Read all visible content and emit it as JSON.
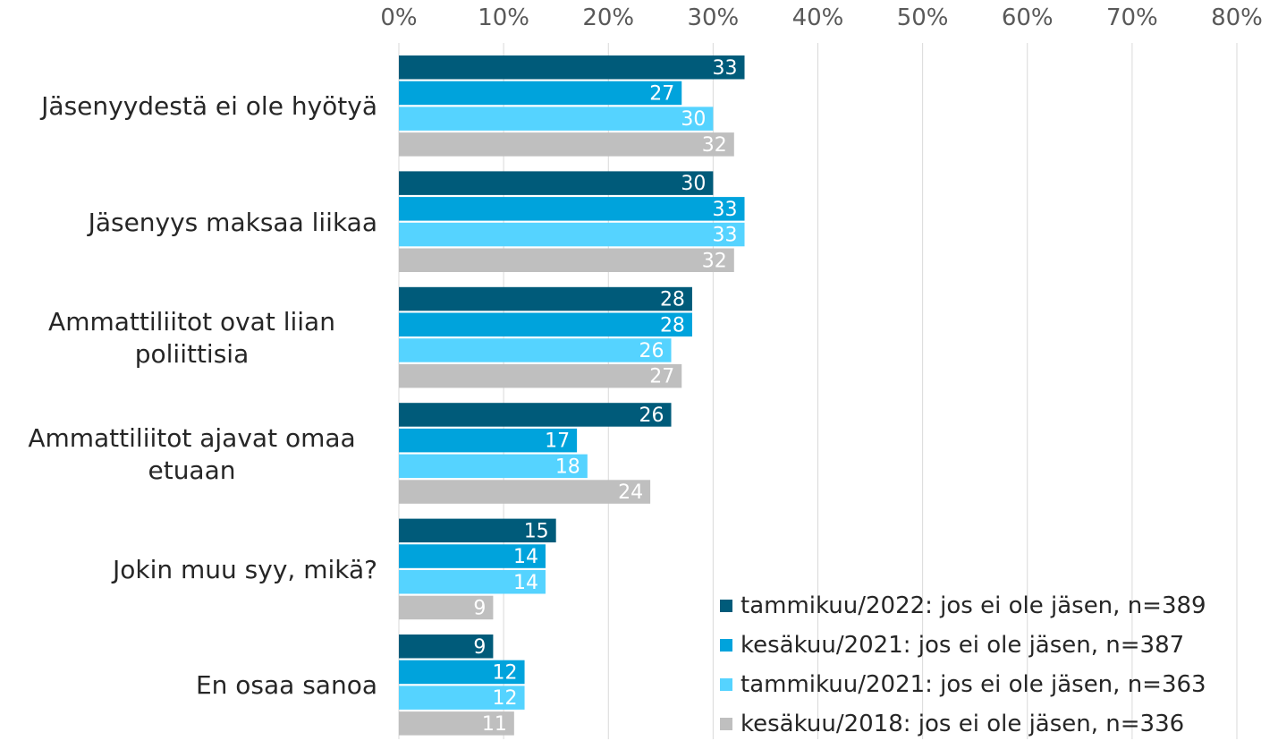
{
  "chart_data": {
    "type": "bar",
    "orientation": "horizontal",
    "categories": [
      "Jäsenyydestä ei ole hyötyä",
      "Jäsenyys maksaa liikaa",
      "Ammattiliitot ovat liian poliittisia",
      "Ammattiliitot ajavat omaa etuaan",
      "Jokin muu syy, mikä?",
      "En osaa sanoa"
    ],
    "series": [
      {
        "name": "tammikuu/2022: jos ei ole jäsen, n=389",
        "color": "#005b7a",
        "values": [
          33,
          30,
          28,
          26,
          15,
          9
        ]
      },
      {
        "name": "kesäkuu/2021: jos ei ole jäsen, n=387",
        "color": "#00a3dc",
        "values": [
          27,
          33,
          28,
          17,
          14,
          12
        ]
      },
      {
        "name": "tammikuu/2021: jos ei ole jäsen, n=363",
        "color": "#55d3ff",
        "values": [
          30,
          33,
          26,
          18,
          14,
          12
        ]
      },
      {
        "name": "kesäkuu/2018: jos ei ole jäsen, n=336",
        "color": "#bfbfbf",
        "values": [
          32,
          32,
          27,
          24,
          9,
          11
        ]
      }
    ],
    "xlim": [
      0,
      80
    ],
    "xticks": [
      {
        "value": 0,
        "label": "0%"
      },
      {
        "value": 10,
        "label": "10%"
      },
      {
        "value": 20,
        "label": "20%"
      },
      {
        "value": 30,
        "label": "30%"
      },
      {
        "value": 40,
        "label": "40%"
      },
      {
        "value": 50,
        "label": "50%"
      },
      {
        "value": 60,
        "label": "60%"
      },
      {
        "value": 70,
        "label": "70%"
      },
      {
        "value": 80,
        "label": "80%"
      }
    ],
    "grid": true,
    "legend": "lower right"
  }
}
